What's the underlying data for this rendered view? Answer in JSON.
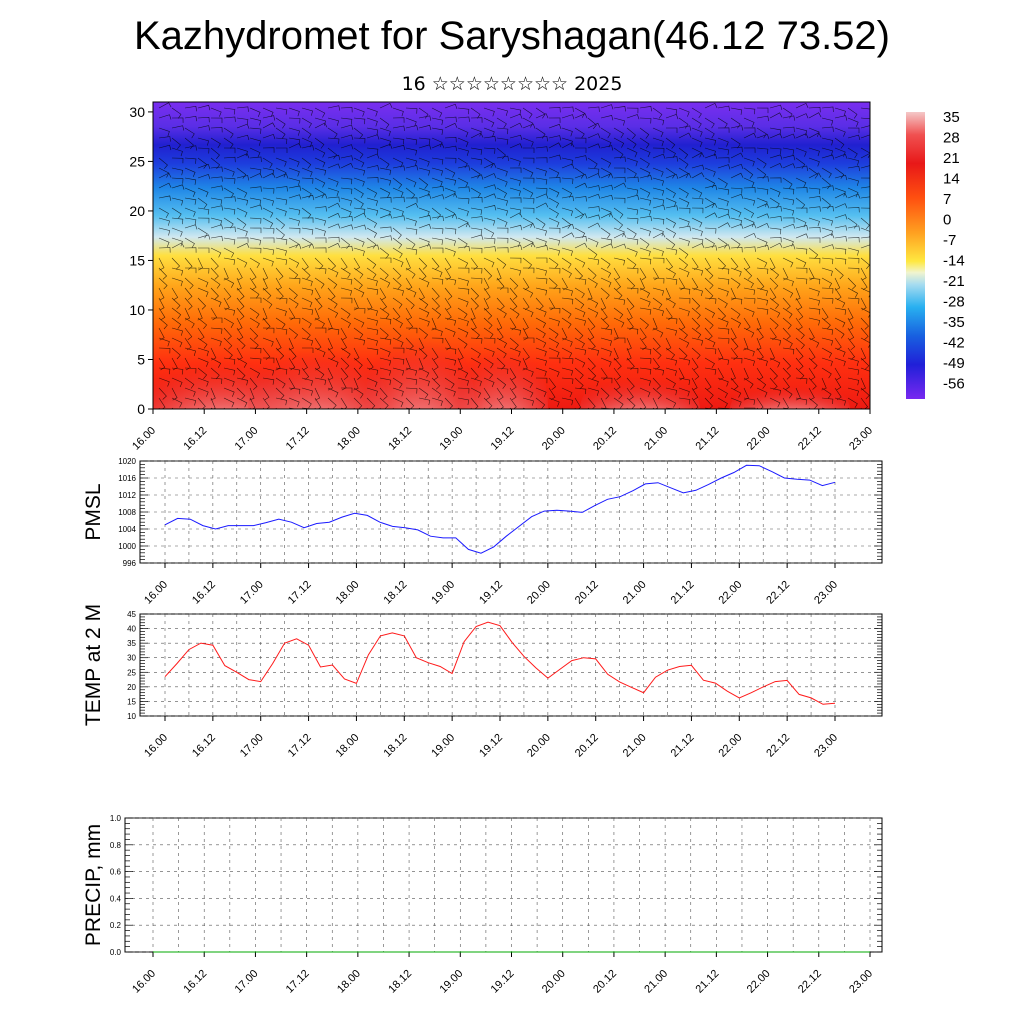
{
  "title": "Kazhydromet for Saryshagan(46.12 73.52)",
  "subtitle": "16 ☆☆☆☆☆☆☆☆ 2025",
  "colors": {
    "pmsl_line": "#1a1aff",
    "temp_line": "#ff1a1a",
    "precip_line": "#00aa00"
  },
  "chart_data": [
    {
      "type": "heatmap",
      "x_tick_labels": [
        "16.00",
        "16.12",
        "17.00",
        "17.12",
        "18.00",
        "18.12",
        "19.00",
        "19.12",
        "20.00",
        "20.12",
        "21.00",
        "21.12",
        "22.00",
        "22.12",
        "23.00"
      ],
      "y_ticks": [
        0,
        5,
        10,
        15,
        20,
        25,
        30
      ],
      "ylim": [
        0,
        31
      ],
      "colorbar_labels": [
        "35",
        "28",
        "21",
        "14",
        "7",
        "0",
        "-7",
        "-14",
        "-21",
        "-28",
        "-35",
        "-42",
        "-49",
        "-56"
      ],
      "overlay": "wind-barbs"
    },
    {
      "type": "line",
      "ylabel": "PMSL",
      "ylim": [
        996,
        1020
      ],
      "y_ticks": [
        996,
        1000,
        1004,
        1008,
        1012,
        1016,
        1020
      ],
      "x_tick_labels": [
        "16.00",
        "16.12",
        "17.00",
        "17.12",
        "18.00",
        "18.12",
        "19.00",
        "19.12",
        "20.00",
        "20.12",
        "21.00",
        "21.12",
        "22.00",
        "22.12",
        "23.00"
      ],
      "grid": true,
      "series": [
        {
          "values": [
            1005,
            1006.5,
            1006.3,
            1004.8,
            1004,
            1004.8,
            1004.8,
            1004.8,
            1005.5,
            1006.3,
            1005.6,
            1004.3,
            1005.3,
            1005.6,
            1006.8,
            1007.7,
            1007.2,
            1005.6,
            1004.6,
            1004.3,
            1003.8,
            1002.3,
            1001.9,
            1001.9,
            999.2,
            998.3,
            999.8,
            1002.3,
            1004.6,
            1006.9,
            1008.2,
            1008.4,
            1008.2,
            1007.9,
            1009.5,
            1011,
            1011.6,
            1013,
            1014.6,
            1014.9,
            1013.7,
            1012.5,
            1013.1,
            1014.5,
            1016,
            1017.3,
            1019,
            1018.9,
            1017.5,
            1016,
            1015.7,
            1015.5,
            1014.2,
            1015
          ]
        }
      ]
    },
    {
      "type": "line",
      "ylabel": "TEMP at 2 M",
      "ylim": [
        10,
        45
      ],
      "y_ticks": [
        10,
        15,
        20,
        25,
        30,
        35,
        40,
        45
      ],
      "x_tick_labels": [
        "16.00",
        "16.12",
        "17.00",
        "17.12",
        "18.00",
        "18.12",
        "19.00",
        "19.12",
        "20.00",
        "20.12",
        "21.00",
        "21.12",
        "22.00",
        "22.12",
        "23.00"
      ],
      "grid": true,
      "series": [
        {
          "values": [
            23.5,
            28,
            32.8,
            35,
            34.3,
            27.3,
            25,
            22.5,
            21.8,
            28,
            35,
            36.5,
            34.3,
            26.8,
            27.5,
            22.7,
            21.2,
            31,
            37.5,
            38.5,
            37.5,
            30,
            28.3,
            27,
            24.6,
            35.5,
            40.7,
            42.2,
            41,
            35.3,
            30.5,
            26.5,
            23,
            26,
            29,
            30,
            29.6,
            24.3,
            21.7,
            19.8,
            18,
            23.3,
            25.7,
            27,
            27.4,
            22.3,
            21.3,
            18.5,
            16.2,
            18,
            20,
            21.8,
            22.2,
            17.4,
            16.2,
            14,
            14.4
          ]
        }
      ]
    },
    {
      "type": "line",
      "ylabel": "PRECIP, mm",
      "ylim": [
        0.0,
        1.0
      ],
      "y_ticks": [
        0.0,
        0.2,
        0.4,
        0.6,
        0.8,
        1.0
      ],
      "y_tick_labels": [
        "0.0",
        "0.2",
        "0.4",
        "0.6",
        "0.8",
        "1.0"
      ],
      "x_tick_labels": [
        "16.00",
        "16.12",
        "17.00",
        "17.12",
        "18.00",
        "18.12",
        "19.00",
        "19.12",
        "20.00",
        "20.12",
        "21.00",
        "21.12",
        "22.00",
        "22.12",
        "23.00"
      ],
      "grid": true,
      "series": [
        {
          "values": [
            0,
            0,
            0,
            0,
            0,
            0,
            0,
            0,
            0,
            0,
            0,
            0,
            0,
            0,
            0,
            0,
            0,
            0,
            0,
            0,
            0,
            0,
            0,
            0,
            0,
            0,
            0,
            0,
            0,
            0,
            0,
            0,
            0,
            0,
            0,
            0,
            0,
            0,
            0,
            0,
            0,
            0,
            0,
            0,
            0,
            0,
            0,
            0,
            0,
            0,
            0,
            0,
            0,
            0,
            0,
            0,
            0
          ]
        }
      ]
    }
  ]
}
